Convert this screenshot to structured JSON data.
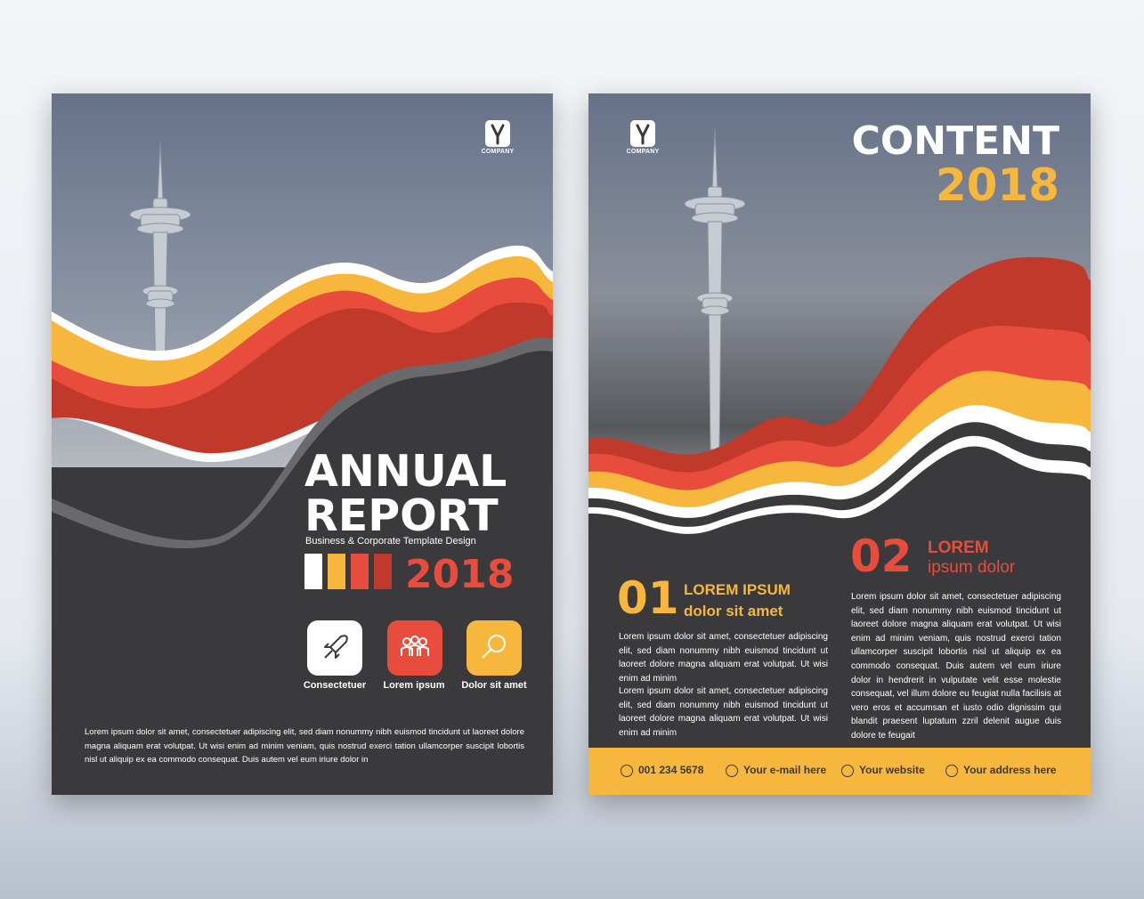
{
  "colors": {
    "dark": "#3a3a3c",
    "yellow": "#f6b73c",
    "orange_red": "#e74c3c",
    "red": "#c0392b",
    "white": "#ffffff",
    "sky_top": "#6b7890",
    "sky_bottom": "#b8bcc2"
  },
  "cover": {
    "logo_text": "COMPANY",
    "title_line1": "ANNUAL",
    "title_line2": "REPORT",
    "subtitle": "Business & Corporate Template Design",
    "year": "2018",
    "swatches": [
      "#ffffff",
      "#f6b73c",
      "#e74c3c",
      "#c0392b"
    ],
    "features": [
      {
        "icon": "rocket-icon",
        "label": "Consectetuer",
        "color": "#ffffff"
      },
      {
        "icon": "people-icon",
        "label": "Lorem ipsum",
        "color": "#e74c3c"
      },
      {
        "icon": "magnifier-icon",
        "label": "Dolor sit amet",
        "color": "#f6b73c"
      }
    ],
    "body": "Lorem ipsum dolor sit amet, consectetuer adipiscing elit, sed diam nonummy nibh euismod tincidunt ut laoreet dolore magna aliquam erat volutpat. Ut wisi enim ad minim veniam, quis nostrud exerci tation ullamcorper suscipit lobortis nisl ut aliquip ex ea commodo consequat. Duis autem vel eum iriure dolor in"
  },
  "content_page": {
    "logo_text": "COMPANY",
    "title": "CONTENT",
    "year": "2018",
    "section1": {
      "number": "01",
      "heading_line1": "LOREM IPSUM",
      "heading_line2": "dolor sit amet",
      "para1": "Lorem ipsum dolor sit amet, consectetuer adipiscing elit, sed diam nonummy nibh euismod tincidunt ut laoreet dolore magna aliquam erat volutpat. Ut wisi enim ad minim",
      "para2": "Lorem ipsum dolor sit amet, consectetuer adipiscing elit, sed diam nonummy nibh euismod tincidunt ut laoreet dolore magna aliquam erat volutpat. Ut wisi enim ad minim"
    },
    "section2": {
      "number": "02",
      "heading_line1": "LOREM",
      "heading_line2": "ipsum dolor",
      "para": "Lorem ipsum dolor sit amet, consectetuer adipiscing elit, sed diam nonummy nibh euismod tincidunt ut laoreet dolore magna aliquam erat volutpat. Ut wisi enim ad minim veniam, quis nostrud exerci tation ullamcorper suscipit lobortis nisl ut aliquip ex ea commodo consequat. Duis autem vel eum iriure dolor in hendrerit in vulputate velit esse molestie consequat, vel illum dolore eu feugiat nulla facilisis at vero eros et accumsan et iusto odio dignissim qui blandit praesent luptatum zzril delenit augue duis dolore te feugait"
    },
    "footer": {
      "phone": "001 234 5678",
      "email": "Your e-mail here",
      "website": "Your website",
      "address": "Your address here"
    }
  }
}
